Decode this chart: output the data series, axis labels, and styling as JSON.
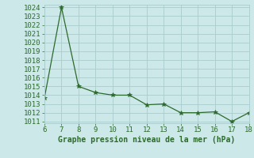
{
  "x": [
    6,
    7,
    8,
    9,
    10,
    11,
    12,
    13,
    14,
    15,
    16,
    17,
    18
  ],
  "y": [
    1013.7,
    1024.0,
    1015.0,
    1014.3,
    1014.0,
    1014.0,
    1012.9,
    1013.0,
    1012.0,
    1012.0,
    1012.1,
    1011.0,
    1012.0
  ],
  "line_color": "#2d6a2d",
  "marker": "*",
  "marker_size": 4,
  "bg_color": "#cce8e8",
  "grid_color": "#aacccc",
  "xlabel": "Graphe pression niveau de la mer (hPa)",
  "ylim_min": 1011,
  "ylim_max": 1024,
  "xlim_min": 6,
  "xlim_max": 18,
  "ytick_step": 1,
  "xtick_step": 1,
  "tick_font_size": 6.5,
  "label_font_size": 7
}
